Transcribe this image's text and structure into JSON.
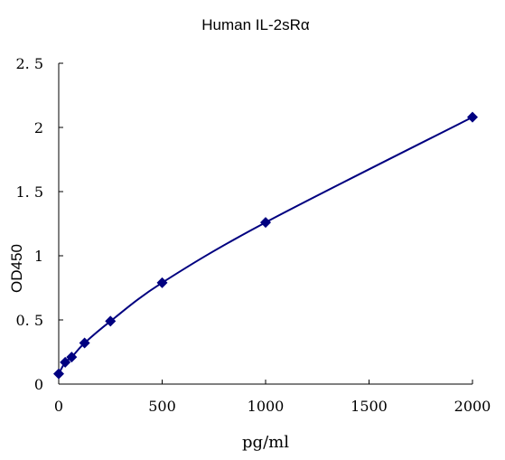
{
  "chart_data": {
    "type": "scatter",
    "title": "Human IL-2sRα",
    "xlabel": "pg/ml",
    "ylabel": "OD450",
    "xlim": [
      0,
      2000
    ],
    "ylim": [
      0,
      2.5
    ],
    "x_ticks": [
      0,
      500,
      1000,
      1500,
      2000
    ],
    "x_tick_labels": [
      "0",
      "500",
      "1000",
      "1500",
      "2000"
    ],
    "y_ticks": [
      0,
      0.5,
      1,
      1.5,
      2,
      2.5
    ],
    "y_tick_labels": [
      "0",
      "0. 5",
      "1",
      "1. 5",
      "2",
      "2. 5"
    ],
    "grid": false,
    "legend": "none",
    "marker": "diamond",
    "fit_line": "smooth curve through points",
    "series": [
      {
        "x": [
          0,
          31.25,
          62.5,
          125,
          250,
          500,
          1000,
          2000
        ],
        "y": [
          0.08,
          0.17,
          0.21,
          0.32,
          0.49,
          0.79,
          1.26,
          2.08
        ],
        "color": "#000080"
      }
    ]
  }
}
